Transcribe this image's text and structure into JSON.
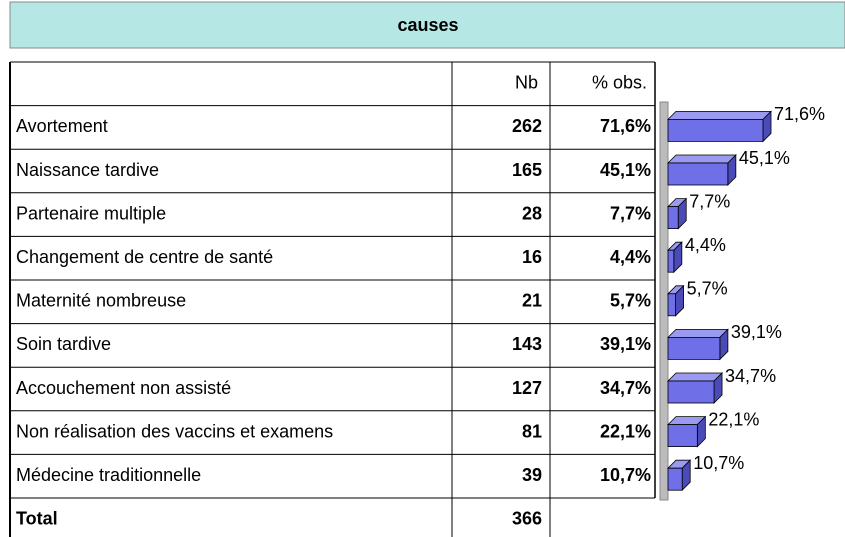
{
  "title": "causes",
  "table": {
    "header": [
      "Nb",
      "% obs."
    ],
    "rows": [
      {
        "label": "Avortement",
        "nb": 262,
        "pct": {
          "value": 71.6,
          "label": "71,6%"
        }
      },
      {
        "label": "Naissance tardive",
        "nb": 165,
        "pct": {
          "value": 45.1,
          "label": "45,1%"
        }
      },
      {
        "label": "Partenaire multiple",
        "nb": 28,
        "pct": {
          "value": 7.7,
          "label": "7,7%"
        }
      },
      {
        "label": "Changement de centre de santé",
        "nb": 16,
        "pct": {
          "value": 4.4,
          "label": "4,4%"
        }
      },
      {
        "label": "Maternité nombreuse",
        "nb": 21,
        "pct": {
          "value": 5.7,
          "label": "5,7%"
        }
      },
      {
        "label": "Soin tardive",
        "nb": 143,
        "pct": {
          "value": 39.1,
          "label": "39,1%"
        }
      },
      {
        "label": "Accouchement non assisté",
        "nb": 127,
        "pct": {
          "value": 34.7,
          "label": "34,7%"
        }
      },
      {
        "label": "Non réalisation des vaccins et examens",
        "nb": 81,
        "pct": {
          "value": 22.1,
          "label": "22,1%"
        }
      },
      {
        "label": "Médecine traditionnelle",
        "nb": 39,
        "pct": {
          "value": 10.7,
          "label": "10,7%"
        }
      }
    ],
    "total": {
      "label": "Total",
      "nb": 366
    }
  }
}
